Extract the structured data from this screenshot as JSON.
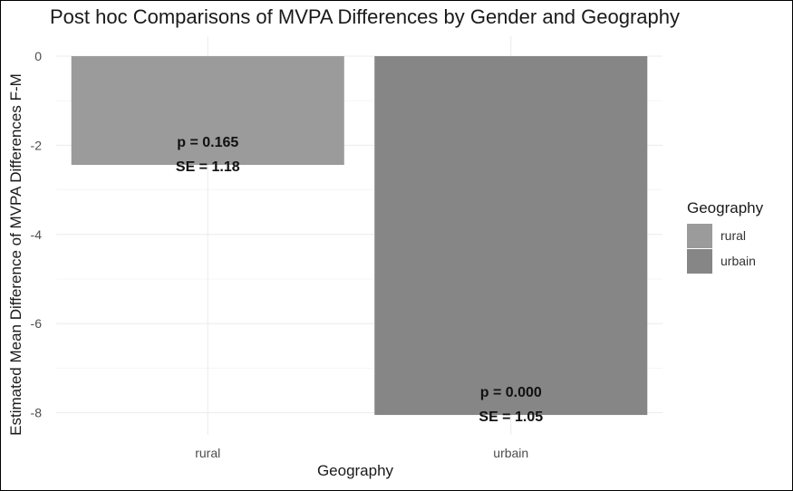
{
  "chart_data": {
    "type": "bar",
    "title": "Post hoc Comparisons of MVPA Differences by Gender and Geography",
    "xlabel": "Geography",
    "ylabel": "Estimated Mean Difference of MVPA Differences F-M",
    "categories": [
      "rural",
      "urbain"
    ],
    "values": [
      -2.44,
      -8.05
    ],
    "colors": [
      "#9b9b9b",
      "#868686"
    ],
    "annotations": [
      {
        "p": "p = 0.165",
        "se": "SE = 1.18"
      },
      {
        "p": "p = 0.000",
        "se": "SE = 1.05"
      }
    ],
    "yticks": [
      "0",
      "-2",
      "-4",
      "-6",
      "-8"
    ],
    "ylim": [
      -8.6,
      0.3
    ],
    "grid": true,
    "legend": {
      "title": "Geography",
      "position": "right",
      "entries": [
        "rural",
        "urbain"
      ]
    }
  }
}
